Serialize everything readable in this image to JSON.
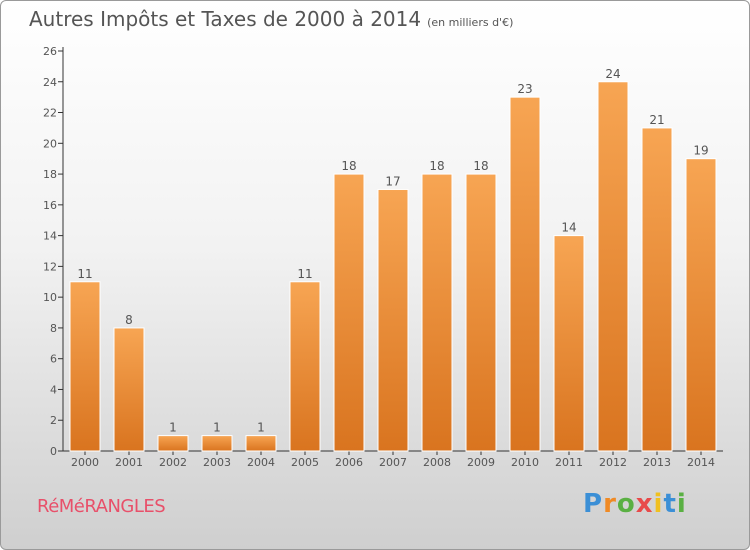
{
  "title": "Autres Impôts et Taxes de 2000 à 2014",
  "subtitle": "(en milliers d'€)",
  "commune": "RéMéRANGLES",
  "logo": {
    "p": "P",
    "r": "r",
    "o": "o",
    "x": "x",
    "i1": "i",
    "t": "t",
    "i2": "i"
  },
  "colors": {
    "bar_top": "#f7a553",
    "bar_bottom": "#d9741f",
    "text": "#555555",
    "commune": "#e8506a"
  },
  "chart_data": {
    "type": "bar",
    "title": "Autres Impôts et Taxes de 2000 à 2014",
    "categories": [
      "2000",
      "2001",
      "2002",
      "2003",
      "2004",
      "2005",
      "2006",
      "2007",
      "2008",
      "2009",
      "2010",
      "2011",
      "2012",
      "2013",
      "2014"
    ],
    "values": [
      11,
      8,
      1,
      1,
      1,
      11,
      18,
      17,
      18,
      18,
      23,
      14,
      24,
      21,
      19
    ],
    "yticks": [
      0,
      2,
      4,
      6,
      8,
      10,
      12,
      14,
      16,
      18,
      20,
      22,
      24,
      26
    ],
    "ylim": [
      0,
      26
    ],
    "grid": false,
    "xlabel": "",
    "ylabel": ""
  }
}
